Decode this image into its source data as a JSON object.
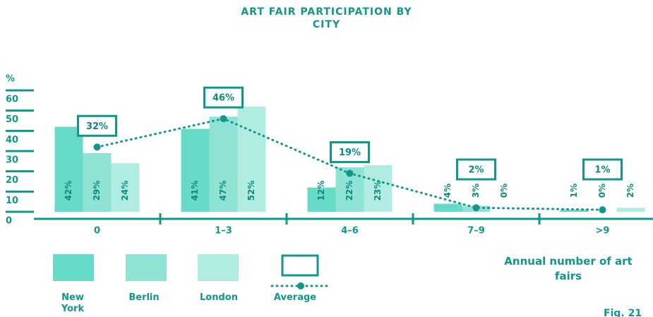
{
  "chart_data": {
    "type": "bar",
    "title": "ART FAIR PARTICIPATION BY CITY",
    "y_label": "%",
    "x_label": "Annual number of art fairs",
    "figure_label": "Fig. 21",
    "categories": [
      "0",
      "1–3",
      "4–6",
      "7–9",
      ">9"
    ],
    "series": [
      {
        "name": "New York",
        "color": "#66dbc8",
        "values": [
          42,
          41,
          12,
          4,
          1
        ],
        "value_labels": [
          "42%",
          "41%",
          "12%",
          "4%",
          "1%"
        ]
      },
      {
        "name": "Berlin",
        "color": "#8fe3d5",
        "values": [
          29,
          47,
          22,
          3,
          0
        ],
        "value_labels": [
          "29%",
          "47%",
          "22%",
          "3%",
          "0%"
        ]
      },
      {
        "name": "London",
        "color": "#b0ece2",
        "values": [
          24,
          52,
          23,
          0,
          2
        ],
        "value_labels": [
          "24%",
          "52%",
          "23%",
          "0%",
          "2%"
        ]
      }
    ],
    "average": {
      "name": "Average",
      "color": "#10978a",
      "values": [
        32,
        46,
        19,
        2,
        1
      ],
      "value_labels": [
        "32%",
        "46%",
        "19%",
        "2%",
        "1%"
      ]
    },
    "ylim": [
      0,
      60
    ],
    "yticks": [
      0,
      10,
      20,
      30,
      40,
      50,
      60
    ]
  }
}
